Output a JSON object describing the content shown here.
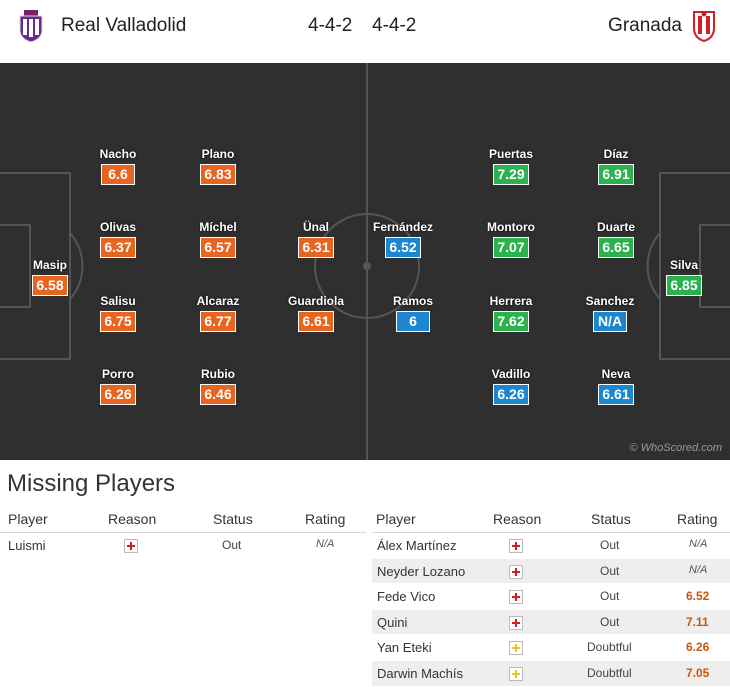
{
  "header": {
    "home_team": "Real Valladolid",
    "away_team": "Granada",
    "home_formation": "4-4-2",
    "away_formation": "4-4-2",
    "home_crest_icon": "real-valladolid-crest-icon",
    "away_crest_icon": "granada-crest-icon"
  },
  "pitch": {
    "watermark": "© WhoScored.com",
    "colors": {
      "orange": "#e8651f",
      "green": "#2bb14e",
      "blue": "#1c86d1"
    },
    "home_players": [
      {
        "name": "Masip",
        "rating": "6.58",
        "color": "orange"
      },
      {
        "name": "Nacho",
        "rating": "6.6",
        "color": "orange"
      },
      {
        "name": "Olivas",
        "rating": "6.37",
        "color": "orange"
      },
      {
        "name": "Salisu",
        "rating": "6.75",
        "color": "orange"
      },
      {
        "name": "Porro",
        "rating": "6.26",
        "color": "orange"
      },
      {
        "name": "Plano",
        "rating": "6.83",
        "color": "orange"
      },
      {
        "name": "Míchel",
        "rating": "6.57",
        "color": "orange"
      },
      {
        "name": "Alcaraz",
        "rating": "6.77",
        "color": "orange"
      },
      {
        "name": "Rubio",
        "rating": "6.46",
        "color": "orange"
      },
      {
        "name": "Ünal",
        "rating": "6.31",
        "color": "orange"
      },
      {
        "name": "Guardiola",
        "rating": "6.61",
        "color": "orange"
      }
    ],
    "away_players": [
      {
        "name": "Fernández",
        "rating": "6.52",
        "color": "blue"
      },
      {
        "name": "Ramos",
        "rating": "6",
        "color": "blue"
      },
      {
        "name": "Puertas",
        "rating": "7.29",
        "color": "green"
      },
      {
        "name": "Montoro",
        "rating": "7.07",
        "color": "green"
      },
      {
        "name": "Herrera",
        "rating": "7.62",
        "color": "green"
      },
      {
        "name": "Vadillo",
        "rating": "6.26",
        "color": "blue"
      },
      {
        "name": "Díaz",
        "rating": "6.91",
        "color": "green"
      },
      {
        "name": "Duarte",
        "rating": "6.65",
        "color": "green"
      },
      {
        "name": "Sanchez",
        "rating": "N/A",
        "color": "blue"
      },
      {
        "name": "Neva",
        "rating": "6.61",
        "color": "blue"
      },
      {
        "name": "Silva",
        "rating": "6.85",
        "color": "green"
      }
    ]
  },
  "missing": {
    "title": "Missing Players",
    "columns": {
      "player": "Player",
      "reason": "Reason",
      "status": "Status",
      "rating": "Rating"
    },
    "home": [
      {
        "player": "Luismi",
        "reason": "injury",
        "status": "Out",
        "rating": "N/A"
      }
    ],
    "away": [
      {
        "player": "Álex Martínez",
        "reason": "injury",
        "status": "Out",
        "rating": "N/A"
      },
      {
        "player": "Neyder Lozano",
        "reason": "injury",
        "status": "Out",
        "rating": "N/A"
      },
      {
        "player": "Fede Vico",
        "reason": "injury",
        "status": "Out",
        "rating": "6.52"
      },
      {
        "player": "Quini",
        "reason": "injury",
        "status": "Out",
        "rating": "7.11"
      },
      {
        "player": "Yan Eteki",
        "reason": "doubtful",
        "status": "Doubtful",
        "rating": "6.26"
      },
      {
        "player": "Darwin Machís",
        "reason": "doubtful",
        "status": "Doubtful",
        "rating": "7.05"
      }
    ]
  }
}
